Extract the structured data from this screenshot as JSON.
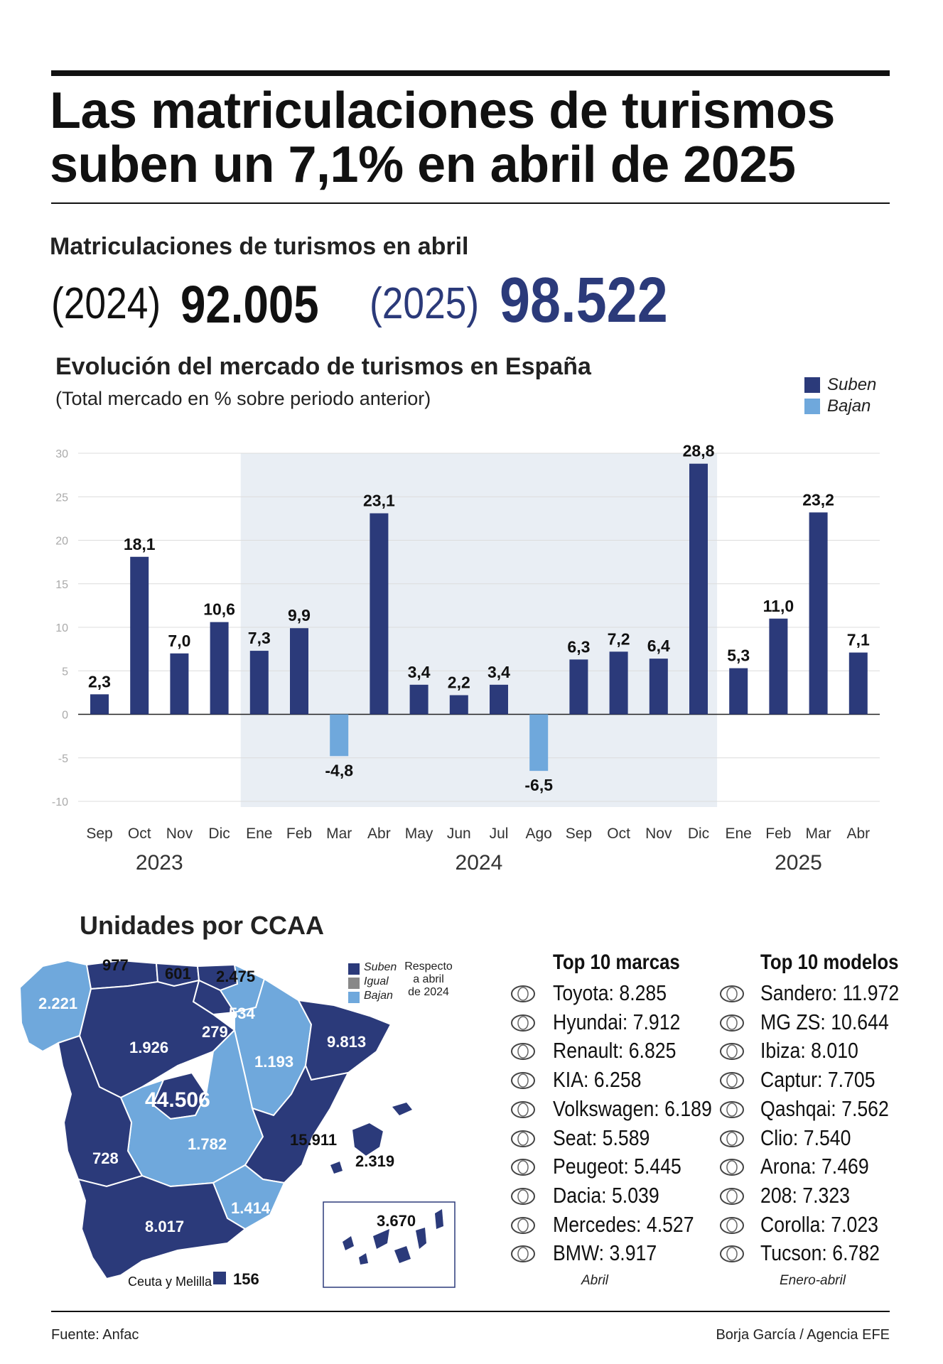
{
  "header": {
    "title_line1": "Las matriculaciones de turismos",
    "title_line2": "suben un 7,1% en abril de 2025"
  },
  "summary": {
    "heading": "Matriculaciones de turismos en abril",
    "year_a": "(2024)",
    "value_a": "92.005",
    "year_b": "(2025)",
    "value_b": "98.522"
  },
  "chart_data": {
    "type": "bar",
    "title": "Evolución del mercado de turismos en España",
    "subtitle": "(Total mercado en % sobre periodo anterior)",
    "legend": [
      {
        "label": "Suben",
        "color": "#2b3a7a"
      },
      {
        "label": "Bajan",
        "color": "#6fa8dc"
      }
    ],
    "categories": [
      "Sep",
      "Oct",
      "Nov",
      "Dic",
      "Ene",
      "Feb",
      "Mar",
      "Abr",
      "May",
      "Jun",
      "Jul",
      "Ago",
      "Sep",
      "Oct",
      "Nov",
      "Dic",
      "Ene",
      "Feb",
      "Mar",
      "Abr"
    ],
    "values": [
      2.3,
      18.1,
      7.0,
      10.6,
      7.3,
      9.9,
      -4.8,
      23.1,
      3.4,
      2.2,
      3.4,
      -6.5,
      6.3,
      7.2,
      6.4,
      28.8,
      5.3,
      11.0,
      23.2,
      7.1
    ],
    "value_labels": [
      "2,3",
      "18,1",
      "7,0",
      "10,6",
      "7,3",
      "9,9",
      "-4,8",
      "23,1",
      "3,4",
      "2,2",
      "3,4",
      "-6,5",
      "6,3",
      "7,2",
      "6,4",
      "28,8",
      "5,3",
      "11,0",
      "23,2",
      "7,1"
    ],
    "years": [
      {
        "label": "2023",
        "from": 0,
        "to": 3
      },
      {
        "label": "2024",
        "from": 4,
        "to": 15
      },
      {
        "label": "2025",
        "from": 16,
        "to": 19
      }
    ],
    "highlight_range": [
      4,
      15
    ],
    "yticks": [
      30,
      25,
      20,
      15,
      10,
      5,
      0,
      -5,
      -10
    ],
    "ylim": [
      -10,
      30
    ],
    "xlabel": "",
    "ylabel": "",
    "colors": {
      "up": "#2b3a7a",
      "down": "#6fa8dc",
      "band": "#e9eef4"
    }
  },
  "ccaa": {
    "title": "Unidades por CCAA",
    "legend": [
      {
        "label": "Suben",
        "color": "#2b3a7a"
      },
      {
        "label": "Igual",
        "color": "#888888"
      },
      {
        "label": "Bajan",
        "color": "#6fa8dc"
      }
    ],
    "legend_note": [
      "Respecto",
      "a abril",
      "de 2024"
    ],
    "regions": {
      "galicia": "2.221",
      "asturias": "977",
      "cantabria": "601",
      "pais_vasco": "2.475",
      "navarra": "534",
      "la_rioja": "279",
      "castilla_leon": "1.926",
      "aragon": "1.193",
      "cataluna": "9.813",
      "madrid": "44.506",
      "castilla_la_mancha": "1.782",
      "extremadura": "728",
      "valencia": "15.911",
      "baleares": "2.319",
      "murcia": "1.414",
      "andalucia": "8.017",
      "canarias": "3.670"
    },
    "ceuta_label": "Ceuta y Melilla",
    "ceuta_value": "156"
  },
  "top_brands": {
    "title": "Top 10 marcas",
    "items": [
      {
        "name": "Toyota: 8.285",
        "icon": "toyota-logo-icon"
      },
      {
        "name": "Hyundai: 7.912",
        "icon": "hyundai-logo-icon"
      },
      {
        "name": "Renault: 6.825",
        "icon": "renault-logo-icon"
      },
      {
        "name": "KIA: 6.258",
        "icon": "kia-logo-icon"
      },
      {
        "name": "Volkswagen: 6.189",
        "icon": "volkswagen-logo-icon"
      },
      {
        "name": "Seat: 5.589",
        "icon": "seat-logo-icon"
      },
      {
        "name": "Peugeot: 5.445",
        "icon": "peugeot-logo-icon"
      },
      {
        "name": "Dacia: 5.039",
        "icon": "dacia-logo-icon"
      },
      {
        "name": "Mercedes: 4.527",
        "icon": "mercedes-logo-icon"
      },
      {
        "name": "BMW: 3.917",
        "icon": "bmw-logo-icon"
      }
    ],
    "foot": "Abril"
  },
  "top_models": {
    "title": "Top 10 modelos",
    "items": [
      {
        "name": "Sandero: 11.972",
        "icon": "dacia-logo-icon"
      },
      {
        "name": "MG ZS: 10.644",
        "icon": "mg-logo-icon"
      },
      {
        "name": "Ibiza: 8.010",
        "icon": "seat-logo-icon"
      },
      {
        "name": "Captur: 7.705",
        "icon": "renault-logo-icon"
      },
      {
        "name": "Qashqai: 7.562",
        "icon": "nissan-logo-icon"
      },
      {
        "name": "Clio: 7.540",
        "icon": "renault-logo-icon"
      },
      {
        "name": "Arona: 7.469",
        "icon": "seat-logo-icon"
      },
      {
        "name": "208: 7.323",
        "icon": "peugeot-logo-icon"
      },
      {
        "name": "Corolla: 7.023",
        "icon": "toyota-logo-icon"
      },
      {
        "name": "Tucson: 6.782",
        "icon": "hyundai-logo-icon"
      }
    ],
    "foot": "Enero-abril"
  },
  "footer": {
    "source": "Fuente: Anfac",
    "credit": "Borja García / Agencia EFE"
  }
}
